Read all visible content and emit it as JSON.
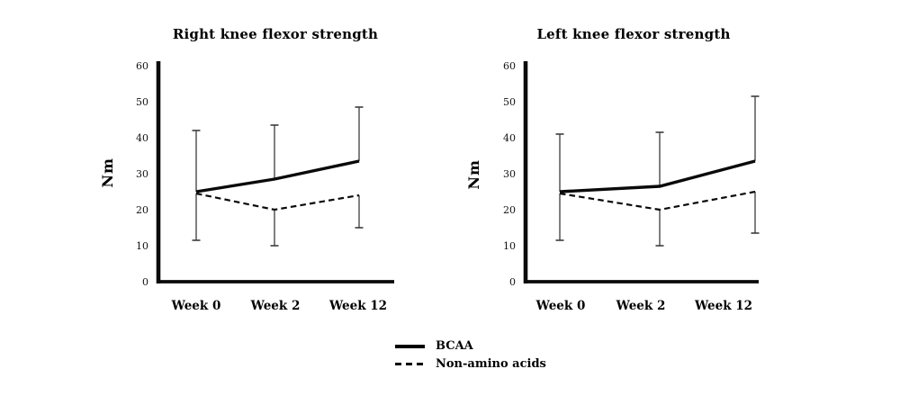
{
  "page": {
    "background": "#ffffff",
    "ink_color": "#0a0a0a",
    "error_bar_color": "#3c3c3c"
  },
  "legend": {
    "items": [
      {
        "label": "BCAA",
        "line_style": "solid"
      },
      {
        "label": "Non-amino acids",
        "line_style": "dashed"
      }
    ]
  },
  "chart_data": [
    {
      "type": "line",
      "title": "Right knee flexor strength",
      "ylabel": "Nm",
      "xlabel": "",
      "categories": [
        "Week 0",
        "Week 2",
        "Week 12"
      ],
      "yticks": [
        0,
        10,
        20,
        30,
        40,
        50,
        60
      ],
      "ylim": [
        0,
        60
      ],
      "grid": false,
      "legend_position": "bottom-center-shared",
      "series": [
        {
          "name": "BCAA",
          "line_style": "solid",
          "values": [
            25,
            28.5,
            33.5
          ],
          "whisker_top": [
            42,
            43.5,
            48.5
          ]
        },
        {
          "name": "Non-amino acids",
          "line_style": "dashed",
          "values": [
            24.5,
            20,
            24
          ],
          "whisker_bottom": [
            11.5,
            10,
            15
          ]
        }
      ]
    },
    {
      "type": "line",
      "title": "Left knee flexor strength",
      "ylabel": "Nm",
      "xlabel": "",
      "categories": [
        "Week 0",
        "Week 2",
        "Week 12"
      ],
      "yticks": [
        0,
        10,
        20,
        30,
        40,
        50,
        60
      ],
      "ylim": [
        0,
        60
      ],
      "grid": false,
      "legend_position": "bottom-center-shared",
      "series": [
        {
          "name": "BCAA",
          "line_style": "solid",
          "values": [
            25,
            26.5,
            33.5
          ],
          "whisker_top": [
            41,
            41.5,
            51.5
          ]
        },
        {
          "name": "Non-amino acids",
          "line_style": "dashed",
          "values": [
            24.5,
            20,
            25
          ],
          "whisker_bottom": [
            11.5,
            10,
            13.5
          ]
        }
      ]
    }
  ]
}
